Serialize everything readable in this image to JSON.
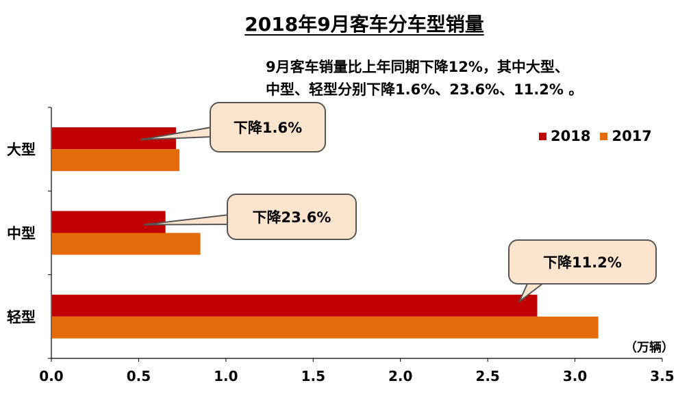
{
  "title": "2018年9月客车分车型销量",
  "subtitle_lines": [
    "9月客车销量比上年同期下降12%，其中大型、",
    "中型、轻型分别下降1.6%、23.6%、11.2% 。"
  ],
  "unit_label": "（万辆）",
  "colors": {
    "s2018": "#c00000",
    "s2017": "#e46c0a",
    "callout_fill": "#fde4cf"
  },
  "chart_data": {
    "type": "bar",
    "orientation": "horizontal",
    "categories": [
      "大型",
      "中型",
      "轻型"
    ],
    "series": [
      {
        "name": "2018",
        "values": [
          0.71,
          0.65,
          2.78
        ]
      },
      {
        "name": "2017",
        "values": [
          0.73,
          0.85,
          3.13
        ]
      }
    ],
    "xlim": [
      0,
      3.5
    ],
    "x_ticks": [
      "0.0",
      "0.5",
      "1.0",
      "1.5",
      "2.0",
      "2.5",
      "3.0",
      "3.5"
    ],
    "legend_position": "top-right",
    "grid": false,
    "annotations": [
      "下降1.6%",
      "下降23.6%",
      "下降11.2%"
    ]
  }
}
